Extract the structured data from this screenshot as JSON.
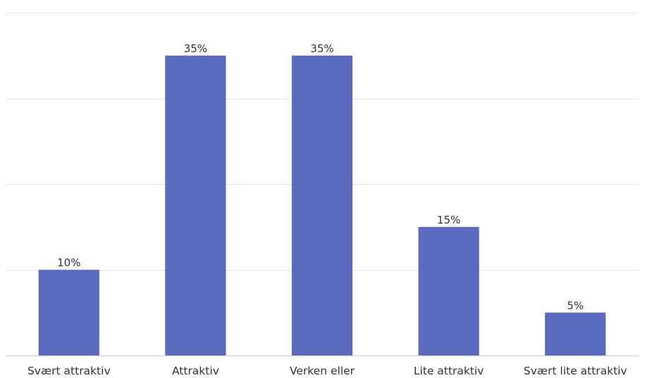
{
  "chart_data": {
    "type": "bar",
    "categories": [
      "Svært attraktiv",
      "Attraktiv",
      "Verken eller",
      "Lite attraktiv",
      "Svært lite attraktiv"
    ],
    "values": [
      10,
      35,
      35,
      15,
      5
    ],
    "data_labels": [
      "10%",
      "35%",
      "35%",
      "15%",
      "5%"
    ],
    "unit": "%",
    "ylim": [
      0,
      40
    ],
    "gridlines": [
      0,
      10,
      20,
      30,
      40
    ],
    "grid": true,
    "legend": "none",
    "bar_color": "#5b6bbf"
  }
}
